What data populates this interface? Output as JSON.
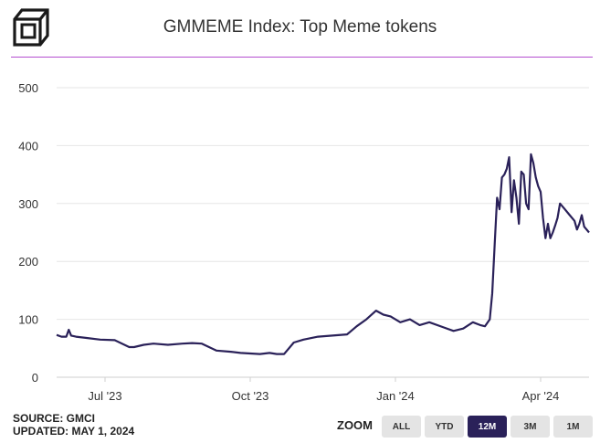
{
  "header": {
    "title": "GMMEME Index: Top Meme tokens"
  },
  "footer": {
    "source": "SOURCE: GMCI",
    "updated": "UPDATED: MAY 1, 2024"
  },
  "zoom": {
    "label": "ZOOM",
    "options": [
      "ALL",
      "YTD",
      "12M",
      "3M",
      "1M"
    ],
    "selected": "12M"
  },
  "colors": {
    "line": "#2a2159",
    "accent_rule": "#b44fcf",
    "grid": "#e6e6e6",
    "button_active": "#2a2159",
    "button_idle": "#e4e4e4"
  },
  "chart_data": {
    "type": "line",
    "title": "GMMEME Index: Top Meme tokens",
    "xlabel": "",
    "ylabel": "",
    "ylim": [
      0,
      500
    ],
    "yticks": [
      0,
      100,
      200,
      300,
      400,
      500
    ],
    "xticks": [
      {
        "label": "Jul '23",
        "month": 1
      },
      {
        "label": "Oct '23",
        "month": 4
      },
      {
        "label": "Jan '24",
        "month": 7
      },
      {
        "label": "Apr '24",
        "month": 10
      }
    ],
    "x_unit": "months since 2023-06-01",
    "xlim": [
      0,
      11
    ],
    "grid": true,
    "series": [
      {
        "name": "GMMEME",
        "x": [
          0,
          0.1,
          0.2,
          0.25,
          0.3,
          0.4,
          0.6,
          0.9,
          1.2,
          1.5,
          1.6,
          1.8,
          2.0,
          2.3,
          2.6,
          2.8,
          3.0,
          3.3,
          3.6,
          3.8,
          4.0,
          4.2,
          4.4,
          4.55,
          4.7,
          4.9,
          5.1,
          5.4,
          5.7,
          6.0,
          6.2,
          6.4,
          6.6,
          6.75,
          6.9,
          7.1,
          7.3,
          7.5,
          7.7,
          8.0,
          8.2,
          8.4,
          8.6,
          8.75,
          8.85,
          8.95,
          9.0,
          9.05,
          9.1,
          9.15,
          9.2,
          9.25,
          9.3,
          9.35,
          9.4,
          9.45,
          9.5,
          9.55,
          9.6,
          9.65,
          9.7,
          9.75,
          9.8,
          9.85,
          9.9,
          9.95,
          10.0,
          10.05,
          10.1,
          10.15,
          10.2,
          10.25,
          10.3,
          10.35,
          10.4,
          10.5,
          10.6,
          10.7,
          10.75,
          10.8,
          10.85,
          10.9,
          11.0
        ],
        "values": [
          73,
          70,
          70,
          82,
          72,
          70,
          68,
          65,
          64,
          52,
          52,
          56,
          58,
          56,
          58,
          59,
          58,
          46,
          44,
          42,
          41,
          40,
          42,
          40,
          40,
          60,
          65,
          70,
          72,
          74,
          88,
          100,
          115,
          108,
          105,
          95,
          100,
          90,
          95,
          86,
          80,
          84,
          95,
          90,
          88,
          100,
          145,
          230,
          310,
          290,
          345,
          350,
          360,
          380,
          285,
          340,
          310,
          265,
          355,
          350,
          300,
          290,
          385,
          370,
          345,
          330,
          320,
          275,
          240,
          265,
          240,
          250,
          262,
          275,
          300,
          290,
          280,
          270,
          255,
          265,
          280,
          260,
          250
        ]
      }
    ]
  }
}
